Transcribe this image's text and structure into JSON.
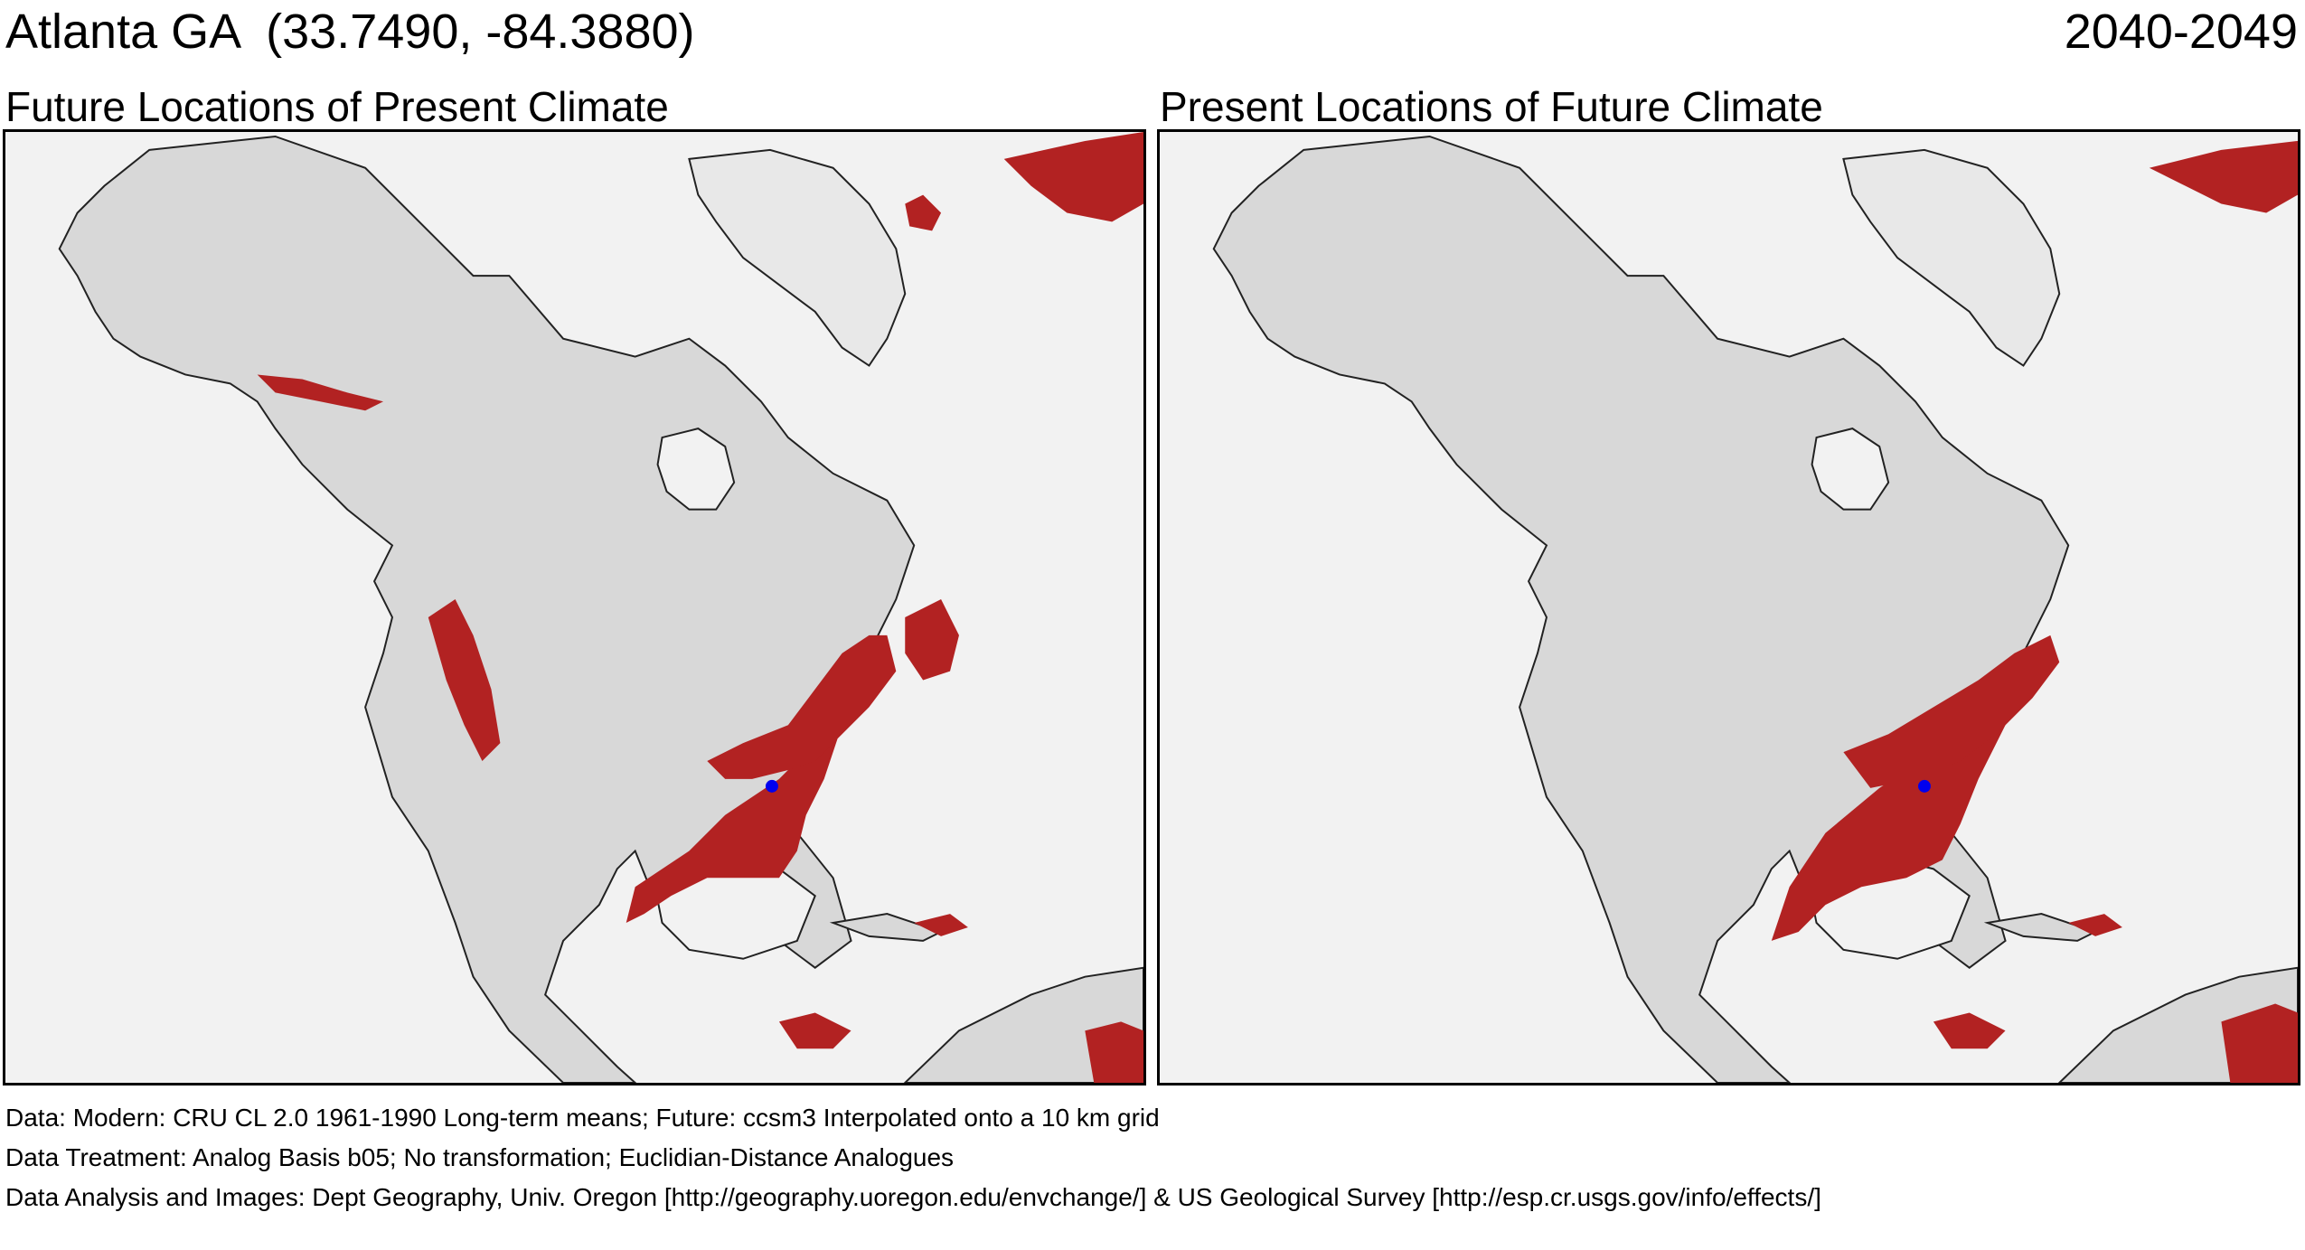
{
  "header": {
    "location": "Atlanta GA  (33.7490, -84.3880)",
    "period": "2040-2049"
  },
  "panels": [
    {
      "title": "Future Locations of Present Climate"
    },
    {
      "title": "Present Locations of Future Climate"
    }
  ],
  "footer": {
    "line1": "Data:  Modern: CRU CL 2.0 1961-1990 Long-term means; Future: ccsm3 Interpolated onto a 10 km grid",
    "line2": "Data Treatment:  Analog Basis b05; No transformation; Euclidian-Distance Analogues",
    "line3": "Data Analysis and Images:  Dept Geography, Univ. Oregon [http://geography.uoregon.edu/envchange/] & US Geological Survey [http://esp.cr.usgs.gov/info/effects/]"
  },
  "map_legend": {
    "analog_color": "#b22222",
    "land_color": "#d8d8d8",
    "ocean_color": "#f2f2f2",
    "site_marker_color": "#0000ee"
  }
}
